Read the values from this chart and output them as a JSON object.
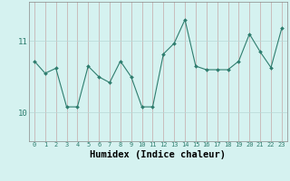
{
  "x": [
    0,
    1,
    2,
    3,
    4,
    5,
    6,
    7,
    8,
    9,
    10,
    11,
    12,
    13,
    14,
    15,
    16,
    17,
    18,
    19,
    20,
    21,
    22,
    23
  ],
  "y": [
    10.72,
    10.55,
    10.62,
    10.08,
    10.08,
    10.65,
    10.5,
    10.42,
    10.72,
    10.5,
    10.08,
    10.08,
    10.82,
    10.97,
    11.3,
    10.65,
    10.6,
    10.6,
    10.6,
    10.72,
    11.1,
    10.85,
    10.63,
    11.18
  ],
  "line_color": "#2E7D6E",
  "marker": "D",
  "marker_size": 2.0,
  "bg_color": "#D5F2F0",
  "vgrid_color": "#C4A8A8",
  "hgrid_color": "#B8D8D5",
  "xlabel": "Humidex (Indice chaleur)",
  "yticks": [
    10,
    11
  ],
  "ylim": [
    9.6,
    11.55
  ],
  "xlim": [
    -0.5,
    23.5
  ],
  "xlabel_fontsize": 7.5,
  "xtick_fontsize": 5.0,
  "ytick_fontsize": 6.5
}
